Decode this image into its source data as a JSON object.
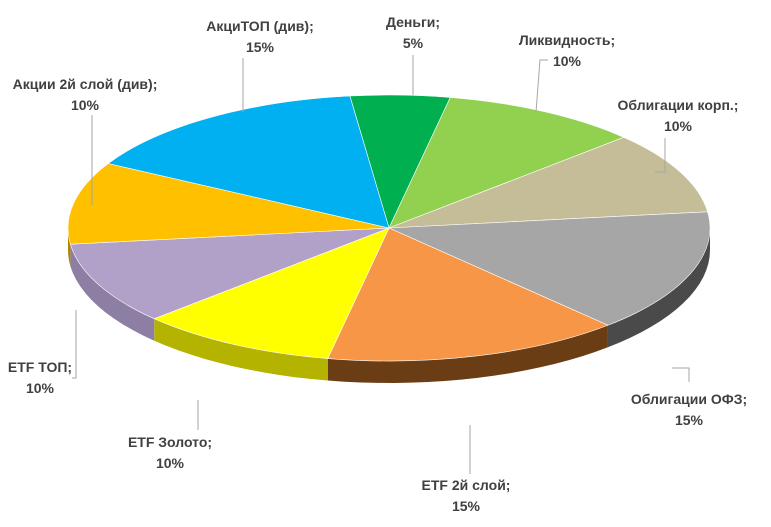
{
  "chart_data": {
    "type": "pie",
    "title": "",
    "legend": "none",
    "slices": [
      {
        "label": "Деньги",
        "value": 5,
        "value_label": "5%",
        "color": "#00b050",
        "shade": "#00702f"
      },
      {
        "label": "Ликвидность",
        "value": 10,
        "value_label": "10%",
        "color": "#92d050",
        "shade": "#5e8a30"
      },
      {
        "label": "Облигации корп.",
        "value": 10,
        "value_label": "10%",
        "color": "#c4bd97",
        "shade": "#8a8466"
      },
      {
        "label": "Облигации ОФЗ",
        "value": 15,
        "value_label": "15%",
        "color": "#a6a6a6",
        "shade": "#4a4a4a"
      },
      {
        "label": "ETF 2й слой",
        "value": 15,
        "value_label": "15%",
        "color": "#f79646",
        "shade": "#6b3d15"
      },
      {
        "label": "ETF Золото",
        "value": 10,
        "value_label": "10%",
        "color": "#ffff00",
        "shade": "#b3b300"
      },
      {
        "label": "ETF ТОП",
        "value": 10,
        "value_label": "10%",
        "color": "#b1a0c7",
        "shade": "#8d7fa3"
      },
      {
        "label": "Акции 2й слой (див)",
        "value": 10,
        "value_label": "10%",
        "color": "#ffc000",
        "shade": "#b38600"
      },
      {
        "label": "АкциТОП (див)",
        "value": 15,
        "value_label": "15%",
        "color": "#00b0f0",
        "shade": "#007aa8"
      }
    ]
  }
}
